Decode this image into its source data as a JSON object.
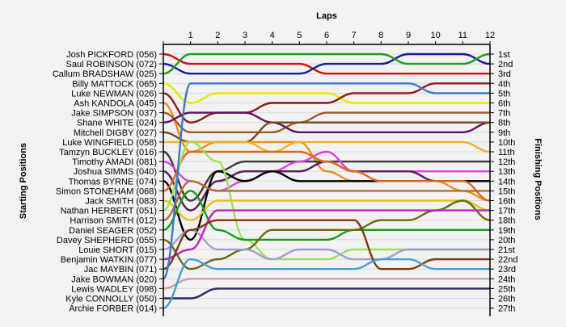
{
  "chart_data": {
    "type": "line",
    "title": "",
    "xlabel": "Laps",
    "ylabel_left": "Starting Positions",
    "ylabel_right": "Finishing Positions",
    "laps": [
      1,
      2,
      3,
      4,
      5,
      6,
      7,
      8,
      9,
      10,
      11,
      12
    ],
    "finishing_positions": [
      "1st",
      "2nd",
      "3rd",
      "4th",
      "5th",
      "6th",
      "7th",
      "8th",
      "9th",
      "10th",
      "11th",
      "12th",
      "13th",
      "14th",
      "15th",
      "16th",
      "17th",
      "18th",
      "19th",
      "20th",
      "21st",
      "22nd",
      "23rd",
      "24th",
      "25th",
      "26th",
      "27th"
    ],
    "series": [
      {
        "name": "Josh PICKFORD (056)",
        "color": "#d01010",
        "positions": [
          1,
          2,
          2,
          2,
          2,
          2,
          3,
          3,
          3,
          3,
          3,
          3,
          3
        ]
      },
      {
        "name": "Saul ROBINSON (072)",
        "color": "#1a1a9c",
        "positions": [
          2,
          3,
          3,
          3,
          3,
          3,
          2,
          2,
          2,
          1,
          1,
          1,
          2
        ]
      },
      {
        "name": "Callum BRADSHAW (025)",
        "color": "#1e9e1e",
        "positions": [
          3,
          1,
          1,
          1,
          1,
          1,
          1,
          1,
          1,
          2,
          2,
          2,
          1
        ]
      },
      {
        "name": "Billy MATTOCK (065)",
        "color": "#e8e800",
        "positions": [
          4,
          6,
          5,
          5,
          5,
          5,
          5,
          6,
          6,
          6,
          6,
          6,
          6
        ]
      },
      {
        "name": "Luke NEWMAN (026)",
        "color": "#8b1a1a",
        "positions": [
          5,
          8,
          7,
          7,
          6,
          6,
          6,
          5,
          5,
          5,
          4,
          4,
          4
        ]
      },
      {
        "name": "Ash KANDOLA (045)",
        "color": "#e8901a",
        "positions": [
          6,
          11,
          10,
          10,
          10,
          10,
          13,
          14,
          14,
          14,
          14,
          15,
          16
        ]
      },
      {
        "name": "Jake SIMPSON (037)",
        "color": "#a05a2a",
        "positions": [
          7,
          9,
          9,
          9,
          9,
          8,
          7,
          7,
          7,
          7,
          7,
          7,
          7
        ]
      },
      {
        "name": "Shane WHITE (024)",
        "color": "#601060",
        "positions": [
          8,
          7,
          7,
          7,
          8,
          9,
          9,
          9,
          9,
          9,
          9,
          9,
          8
        ]
      },
      {
        "name": "Mitchell DIGBY (027)",
        "color": "#7a4a1a",
        "positions": [
          9,
          10,
          10,
          10,
          8,
          8,
          8,
          8,
          8,
          8,
          8,
          8,
          8
        ]
      },
      {
        "name": "Luke WINGFIELD (058)",
        "color": "#f0b030",
        "positions": [
          10,
          10,
          10,
          10,
          11,
          10,
          10,
          10,
          10,
          10,
          10,
          10,
          11
        ]
      },
      {
        "name": "Tamzyn BUCKLEY (016)",
        "color": "#3a3a3a",
        "positions": [
          11,
          16,
          13,
          12,
          12,
          12,
          12,
          12,
          12,
          12,
          12,
          12,
          12
        ]
      },
      {
        "name": "Timothy AMADI (081)",
        "color": "#e040e0",
        "positions": [
          12,
          14,
          15,
          14,
          13,
          12,
          11,
          13,
          13,
          13,
          13,
          13,
          13
        ]
      },
      {
        "name": "Joshua SIMMS (040)",
        "color": "#5a1a5a",
        "positions": [
          13,
          17,
          14,
          13,
          13,
          13,
          12,
          13,
          13,
          13,
          14,
          14,
          14
        ]
      },
      {
        "name": "Thomas BYRNE (074)",
        "color": "#000000",
        "positions": [
          14,
          20,
          13,
          14,
          13,
          14,
          14,
          14,
          14,
          14,
          14,
          14,
          14
        ]
      },
      {
        "name": "Simon STONEHAM (068)",
        "color": "#e06a1a",
        "positions": [
          15,
          11,
          11,
          11,
          11,
          11,
          12,
          13,
          14,
          14,
          14,
          14,
          16
        ]
      },
      {
        "name": "Jack SMITH (083)",
        "color": "#e8c020",
        "positions": [
          16,
          18,
          16,
          16,
          16,
          16,
          16,
          16,
          16,
          16,
          16,
          16,
          17
        ]
      },
      {
        "name": "Nathan HERBERT (051)",
        "color": "#a0e060",
        "positions": [
          17,
          10,
          12,
          20,
          22,
          22,
          22,
          21,
          21,
          21,
          21,
          21,
          21
        ]
      },
      {
        "name": "Harrison SMITH (012)",
        "color": "#b07030",
        "positions": [
          18,
          14,
          15,
          15,
          15,
          15,
          15,
          15,
          15,
          15,
          15,
          15,
          15
        ]
      },
      {
        "name": "Daniel SEAGER (052)",
        "color": "#1a9a1a",
        "positions": [
          19,
          15,
          19,
          20,
          20,
          20,
          20,
          19,
          19,
          19,
          19,
          19,
          19
        ]
      },
      {
        "name": "Davey SHEPHERD (055)",
        "color": "#6a6a10",
        "positions": [
          20,
          23,
          22,
          21,
          19,
          19,
          19,
          19,
          18,
          18,
          17,
          16,
          18
        ]
      },
      {
        "name": "Louie SHORT (015)",
        "color": "#a0a0d0",
        "positions": [
          21,
          19,
          21,
          21,
          22,
          21,
          21,
          22,
          22,
          21,
          21,
          21,
          21
        ]
      },
      {
        "name": "Benjamin WATKIN (077)",
        "color": "#c020c0",
        "positions": [
          22,
          21,
          17,
          17,
          17,
          17,
          17,
          17,
          17,
          17,
          17,
          17,
          17
        ]
      },
      {
        "name": "Jac MAYBIN (071)",
        "color": "#7a3a10",
        "positions": [
          23,
          19,
          18,
          18,
          18,
          18,
          18,
          18,
          23,
          23,
          22,
          22,
          22
        ]
      },
      {
        "name": "Jake BOWMAN (020)",
        "color": "#3a7ac8",
        "positions": [
          24,
          4,
          4,
          4,
          4,
          4,
          4,
          4,
          4,
          4,
          5,
          5,
          5
        ]
      },
      {
        "name": "Lewis WADLEY (098)",
        "color": "#d0a0a0",
        "positions": [
          25,
          24,
          24,
          24,
          24,
          24,
          24,
          24,
          24,
          24,
          24,
          24,
          24
        ]
      },
      {
        "name": "Kyle CONNOLLY (050)",
        "color": "#2a2a6a",
        "positions": [
          26,
          26,
          25,
          25,
          25,
          25,
          25,
          25,
          25,
          25,
          25,
          25,
          25
        ]
      },
      {
        "name": "Archie FORBER (014)",
        "color": "#40a0d0",
        "positions": [
          27,
          22,
          23,
          23,
          23,
          23,
          23,
          23,
          22,
          22,
          23,
          23,
          23
        ]
      }
    ]
  }
}
